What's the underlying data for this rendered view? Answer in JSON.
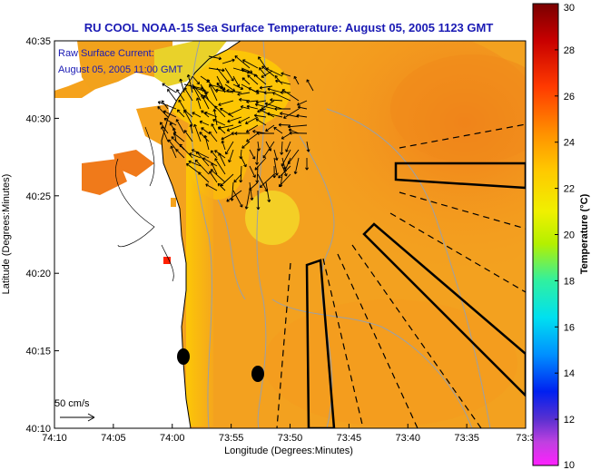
{
  "title": "RU COOL  NOAA-15  Sea Surface Temperature:  August 05, 2005 1123 GMT",
  "current_label_line1": "Raw Surface Current:",
  "current_label_line2": "August 05, 2005 11:00 GMT",
  "scale_label": "50 cm/s",
  "colorbar_title": "Temperature (°C)",
  "colors": {
    "title": "#1a1ab4",
    "land": "#ffffff",
    "sea_warm": "#f0a020"
  },
  "chart_data": {
    "type": "heatmap",
    "title": "RU COOL  NOAA-15  Sea Surface Temperature:  August 05, 2005 1123 GMT",
    "xlabel": "Longitude (Degrees:Minutes)",
    "ylabel": "Latitude (Degrees:Minutes)",
    "x_ticks": [
      "74:10",
      "74:05",
      "74:00",
      "73:55",
      "73:50",
      "73:45",
      "73:40",
      "73:35",
      "73:3"
    ],
    "y_ticks": [
      "40:35",
      "40:30",
      "40:25",
      "40:20",
      "40:15",
      "40:10"
    ],
    "xlim_minutes_west": [
      70,
      30
    ],
    "ylim_minutes_north": [
      10,
      35
    ],
    "colorbar": {
      "label": "Temperature (°C)",
      "ticks": [
        "30",
        "28",
        "26",
        "24",
        "22",
        "20",
        "18",
        "16",
        "14",
        "12",
        "10"
      ],
      "range": [
        10,
        30
      ]
    }
  }
}
